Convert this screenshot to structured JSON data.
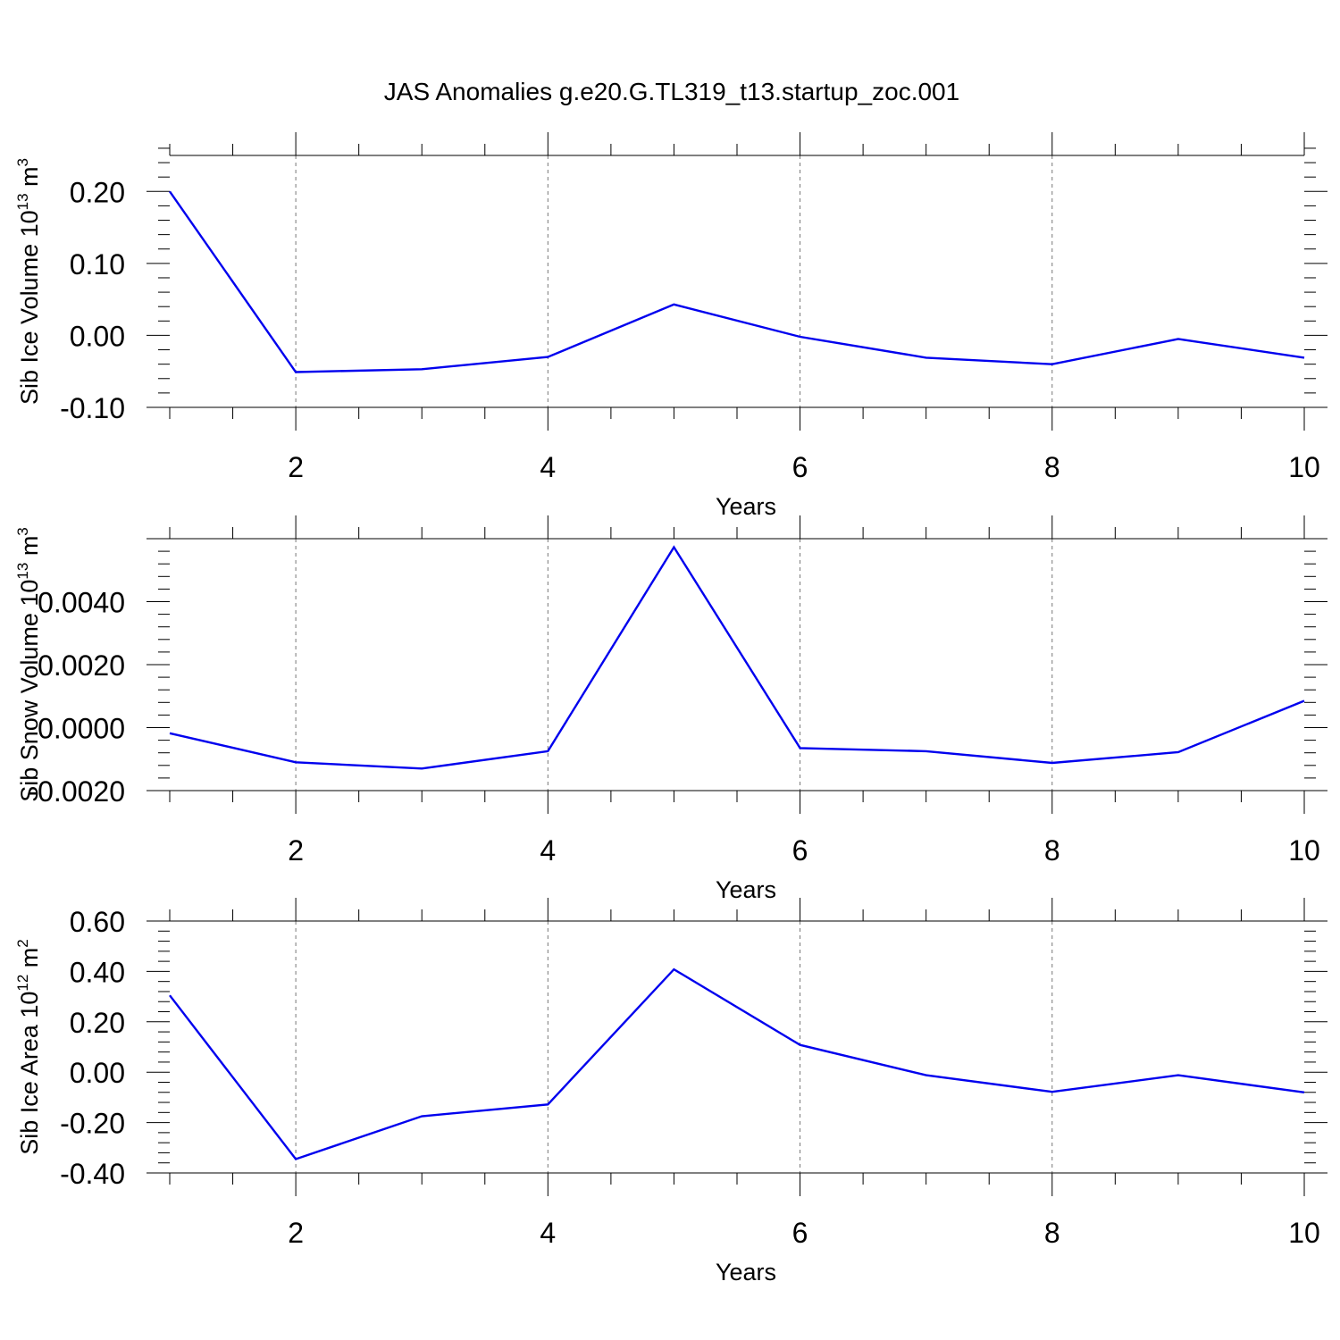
{
  "figure": {
    "title": "JAS Anomalies g.e20.G.TL319_t13.startup_zoc.001",
    "line_color": "#0000ee"
  },
  "chart_data": [
    {
      "type": "line",
      "title": "",
      "xlabel": "Years",
      "ylabel": "Sib Ice Volume 10",
      "ylabel_sup1": "13",
      "ylabel_unit": " m",
      "ylabel_sup2": "3",
      "xlim": [
        1,
        10
      ],
      "ylim": [
        -0.1,
        0.25
      ],
      "grid_x": true,
      "x": [
        1,
        2,
        3,
        4,
        5,
        6,
        7,
        8,
        9,
        10
      ],
      "series": [
        {
          "values": [
            0.2,
            -0.051,
            -0.047,
            -0.03,
            0.043,
            -0.002,
            -0.031,
            -0.04,
            -0.005,
            -0.031
          ]
        }
      ],
      "xticks": [
        2,
        4,
        6,
        8,
        10
      ],
      "xtick_labels": [
        "2",
        "4",
        "6",
        "8",
        "10"
      ],
      "yticks": [
        -0.1,
        0.0,
        0.1,
        0.2
      ],
      "ytick_labels": [
        "-0.10",
        "0.00",
        "0.10",
        "0.20"
      ]
    },
    {
      "type": "line",
      "title": "",
      "xlabel": "Years",
      "ylabel": "Sib Snow Volume 10",
      "ylabel_sup1": "13",
      "ylabel_unit": " m",
      "ylabel_sup2": "3",
      "xlim": [
        1,
        10
      ],
      "ylim": [
        -0.002,
        0.006
      ],
      "grid_x": true,
      "x": [
        1,
        2,
        3,
        4,
        5,
        6,
        7,
        8,
        9,
        10
      ],
      "series": [
        {
          "values": [
            -0.00018,
            -0.0011,
            -0.0013,
            -0.00075,
            0.00573,
            -0.00065,
            -0.00075,
            -0.00112,
            -0.00078,
            0.00085
          ]
        }
      ],
      "xticks": [
        2,
        4,
        6,
        8,
        10
      ],
      "xtick_labels": [
        "2",
        "4",
        "6",
        "8",
        "10"
      ],
      "yticks": [
        -0.002,
        0.0,
        0.002,
        0.004
      ],
      "ytick_labels": [
        "-0.0020",
        "0.0000",
        "0.0020",
        "0.0040"
      ]
    },
    {
      "type": "line",
      "title": "",
      "xlabel": "Years",
      "ylabel": "Sib Ice Area 10",
      "ylabel_sup1": "12",
      "ylabel_unit": " m",
      "ylabel_sup2": "2",
      "xlim": [
        1,
        10
      ],
      "ylim": [
        -0.4,
        0.6
      ],
      "grid_x": true,
      "x": [
        1,
        2,
        3,
        4,
        5,
        6,
        7,
        8,
        9,
        10
      ],
      "series": [
        {
          "values": [
            0.305,
            -0.345,
            -0.175,
            -0.128,
            0.408,
            0.108,
            -0.012,
            -0.078,
            -0.012,
            -0.08
          ]
        }
      ],
      "xticks": [
        2,
        4,
        6,
        8,
        10
      ],
      "xtick_labels": [
        "2",
        "4",
        "6",
        "8",
        "10"
      ],
      "yticks": [
        -0.4,
        -0.2,
        0.0,
        0.2,
        0.4,
        0.6
      ],
      "ytick_labels": [
        "-0.40",
        "-0.20",
        "0.00",
        "0.20",
        "0.40",
        "0.60"
      ]
    }
  ]
}
